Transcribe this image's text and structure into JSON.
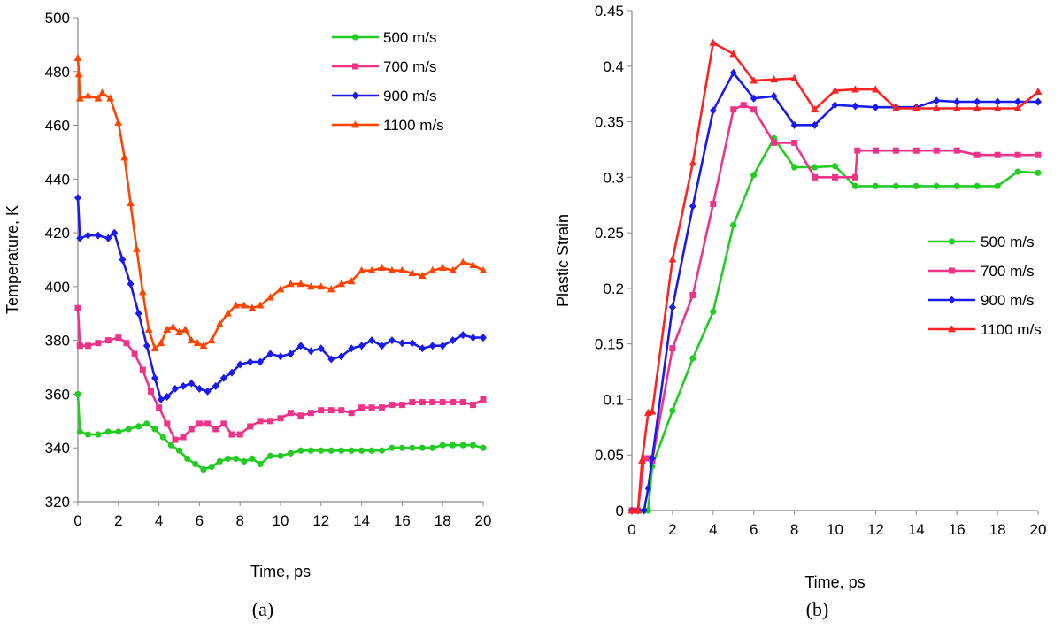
{
  "chart_data": [
    {
      "type": "line",
      "caption": "(a)",
      "xlabel": "Time, ps",
      "ylabel": "Temperature, K",
      "xlim": [
        0,
        20
      ],
      "ylim": [
        320,
        500
      ],
      "xticks": [
        0,
        2,
        4,
        6,
        8,
        10,
        12,
        14,
        16,
        18,
        20
      ],
      "yticks": [
        320,
        340,
        360,
        380,
        400,
        420,
        440,
        460,
        480,
        500
      ],
      "grid": false,
      "legend_position": "top-right",
      "series": [
        {
          "name": "500 m/s",
          "color": "#22cc22",
          "marker": "circle",
          "x": [
            0,
            0.1,
            0.5,
            1,
            1.5,
            2,
            2.5,
            3,
            3.4,
            3.8,
            4.2,
            4.6,
            5,
            5.4,
            5.8,
            6.2,
            6.6,
            7,
            7.4,
            7.8,
            8.2,
            8.6,
            9,
            9.5,
            10,
            10.5,
            11,
            11.5,
            12,
            12.5,
            13,
            13.5,
            14,
            14.5,
            15,
            15.5,
            16,
            16.5,
            17,
            17.5,
            18,
            18.5,
            19,
            19.5,
            20
          ],
          "y": [
            360,
            346,
            345,
            345,
            346,
            346,
            347,
            348,
            349,
            347,
            344,
            341,
            339,
            336,
            334,
            332,
            333,
            335,
            336,
            336,
            335,
            336,
            334,
            337,
            337,
            338,
            339,
            339,
            339,
            339,
            339,
            339,
            339,
            339,
            339,
            340,
            340,
            340,
            340,
            340,
            341,
            341,
            341,
            341,
            340
          ]
        },
        {
          "name": "700 m/s",
          "color": "#ee3388",
          "marker": "square",
          "x": [
            0,
            0.1,
            0.5,
            1,
            1.5,
            2,
            2.4,
            2.8,
            3.2,
            3.6,
            4,
            4.4,
            4.8,
            5.2,
            5.6,
            6,
            6.4,
            6.8,
            7.2,
            7.6,
            8,
            8.5,
            9,
            9.5,
            10,
            10.5,
            11,
            11.5,
            12,
            12.5,
            13,
            13.5,
            14,
            14.5,
            15,
            15.5,
            16,
            16.5,
            17,
            17.5,
            18,
            18.5,
            19,
            19.5,
            20
          ],
          "y": [
            392,
            378,
            378,
            379,
            380,
            381,
            379,
            375,
            369,
            361,
            355,
            349,
            343,
            344,
            347,
            349,
            349,
            347,
            349,
            345,
            345,
            348,
            350,
            350,
            351,
            353,
            352,
            353,
            354,
            354,
            354,
            353,
            355,
            355,
            355,
            356,
            356,
            357,
            357,
            357,
            357,
            357,
            357,
            356,
            358
          ]
        },
        {
          "name": "900 m/s",
          "color": "#1a1aee",
          "marker": "diamond",
          "x": [
            0,
            0.1,
            0.5,
            1,
            1.5,
            1.8,
            2.2,
            2.6,
            3,
            3.4,
            3.8,
            4.1,
            4.4,
            4.8,
            5.2,
            5.6,
            6,
            6.4,
            6.8,
            7.2,
            7.6,
            8,
            8.5,
            9,
            9.5,
            10,
            10.5,
            11,
            11.5,
            12,
            12.5,
            13,
            13.5,
            14,
            14.5,
            15,
            15.5,
            16,
            16.5,
            17,
            17.5,
            18,
            18.5,
            19,
            19.5,
            20
          ],
          "y": [
            433,
            418,
            419,
            419,
            418,
            420,
            410,
            401,
            390,
            378,
            366,
            358,
            359,
            362,
            363,
            364,
            362,
            361,
            363,
            366,
            368,
            371,
            372,
            372,
            375,
            374,
            375,
            378,
            376,
            377,
            373,
            374,
            377,
            378,
            380,
            378,
            380,
            379,
            379,
            377,
            378,
            378,
            380,
            382,
            381,
            381
          ]
        },
        {
          "name": "1100 m/s",
          "color": "#ff4400",
          "marker": "triangle",
          "x": [
            0,
            0.05,
            0.1,
            0.5,
            1,
            1.2,
            1.6,
            2,
            2.3,
            2.6,
            2.9,
            3.2,
            3.5,
            3.8,
            4.1,
            4.4,
            4.7,
            5,
            5.3,
            5.6,
            5.9,
            6.2,
            6.6,
            7,
            7.4,
            7.8,
            8.2,
            8.6,
            9,
            9.5,
            10,
            10.5,
            11,
            11.5,
            12,
            12.5,
            13,
            13.5,
            14,
            14.5,
            15,
            15.5,
            16,
            16.5,
            17,
            17.5,
            18,
            18.5,
            19,
            19.5,
            20
          ],
          "y": [
            485,
            479,
            470,
            471,
            470,
            472,
            470,
            461,
            448,
            431,
            414,
            398,
            384,
            377,
            379,
            384,
            385,
            383,
            384,
            380,
            379,
            378,
            380,
            386,
            390,
            393,
            393,
            392,
            393,
            396,
            399,
            401,
            401,
            400,
            400,
            399,
            401,
            402,
            406,
            406,
            407,
            406,
            406,
            405,
            404,
            406,
            407,
            406,
            409,
            408,
            406
          ]
        }
      ]
    },
    {
      "type": "line",
      "caption": "(b)",
      "xlabel": "Time, ps",
      "ylabel": "Plastic Strain",
      "xlim": [
        0,
        20
      ],
      "ylim": [
        0,
        0.45
      ],
      "xticks": [
        0,
        2,
        4,
        6,
        8,
        10,
        12,
        14,
        16,
        18,
        20
      ],
      "yticks": [
        0,
        0.05,
        0.1,
        0.15,
        0.2,
        0.25,
        0.3,
        0.35,
        0.4,
        0.45
      ],
      "grid": false,
      "legend_position": "right",
      "series": [
        {
          "name": "500 m/s",
          "color": "#22cc22",
          "marker": "circle",
          "x": [
            0,
            0.3,
            0.6,
            0.8,
            1,
            2,
            3,
            4,
            5,
            6,
            7,
            8,
            9,
            10,
            11,
            12,
            13,
            14,
            15,
            16,
            17,
            18,
            19,
            20
          ],
          "y": [
            0,
            0,
            0,
            0,
            0.04,
            0.09,
            0.137,
            0.179,
            0.257,
            0.302,
            0.335,
            0.309,
            0.309,
            0.31,
            0.292,
            0.292,
            0.292,
            0.292,
            0.292,
            0.292,
            0.292,
            0.292,
            0.305,
            0.304
          ]
        },
        {
          "name": "700 m/s",
          "color": "#ee3388",
          "marker": "square",
          "x": [
            0,
            0.3,
            0.6,
            0.8,
            1,
            2,
            3,
            4,
            5,
            5.5,
            6,
            7,
            8,
            9,
            10,
            11,
            11.1,
            12,
            13,
            14,
            15,
            16,
            17,
            18,
            19,
            20
          ],
          "y": [
            0,
            0,
            0.047,
            0.047,
            0.045,
            0.146,
            0.194,
            0.276,
            0.361,
            0.365,
            0.361,
            0.331,
            0.331,
            0.3,
            0.3,
            0.3,
            0.324,
            0.324,
            0.324,
            0.324,
            0.324,
            0.324,
            0.32,
            0.32,
            0.32,
            0.32
          ]
        },
        {
          "name": "900 m/s",
          "color": "#1a1aee",
          "marker": "diamond",
          "x": [
            0,
            0.3,
            0.6,
            0.8,
            1,
            2,
            3,
            4,
            5,
            6,
            7,
            8,
            9,
            10,
            11,
            12,
            13,
            14,
            15,
            16,
            17,
            18,
            19,
            20
          ],
          "y": [
            0,
            0,
            0,
            0.02,
            0.047,
            0.183,
            0.274,
            0.36,
            0.394,
            0.371,
            0.373,
            0.347,
            0.347,
            0.365,
            0.364,
            0.363,
            0.363,
            0.363,
            0.369,
            0.368,
            0.368,
            0.368,
            0.368,
            0.368
          ]
        },
        {
          "name": "1100 m/s",
          "color": "#ff2222",
          "marker": "triangle",
          "x": [
            0,
            0.3,
            0.5,
            0.8,
            1,
            2,
            3,
            4,
            5,
            6,
            7,
            8,
            9,
            10,
            11,
            12,
            13,
            14,
            15,
            16,
            17,
            18,
            19,
            20
          ],
          "y": [
            0,
            0,
            0.045,
            0.088,
            0.089,
            0.226,
            0.313,
            0.421,
            0.411,
            0.387,
            0.388,
            0.389,
            0.361,
            0.378,
            0.379,
            0.379,
            0.362,
            0.362,
            0.362,
            0.362,
            0.362,
            0.362,
            0.362,
            0.377
          ]
        }
      ]
    }
  ]
}
